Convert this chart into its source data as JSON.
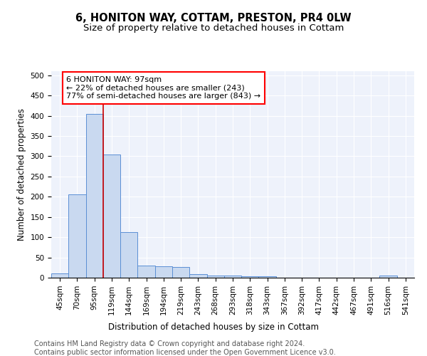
{
  "title1": "6, HONITON WAY, COTTAM, PRESTON, PR4 0LW",
  "title2": "Size of property relative to detached houses in Cottam",
  "xlabel": "Distribution of detached houses by size in Cottam",
  "ylabel": "Number of detached properties",
  "categories": [
    "45sqm",
    "70sqm",
    "95sqm",
    "119sqm",
    "144sqm",
    "169sqm",
    "194sqm",
    "219sqm",
    "243sqm",
    "268sqm",
    "293sqm",
    "318sqm",
    "343sqm",
    "367sqm",
    "392sqm",
    "417sqm",
    "442sqm",
    "467sqm",
    "491sqm",
    "516sqm",
    "541sqm"
  ],
  "values": [
    10,
    205,
    405,
    305,
    113,
    30,
    28,
    26,
    8,
    6,
    5,
    4,
    4,
    0,
    0,
    0,
    0,
    0,
    0,
    5,
    0
  ],
  "bar_color": "#c9d9f0",
  "bar_edge_color": "#5b8fd4",
  "bar_linewidth": 0.7,
  "vline_x": 2.5,
  "vline_color": "#cc0000",
  "annotation_line1": "6 HONITON WAY: 97sqm",
  "annotation_line2": "← 22% of detached houses are smaller (243)",
  "annotation_line3": "77% of semi-detached houses are larger (843) →",
  "ylim": [
    0,
    510
  ],
  "yticks": [
    0,
    50,
    100,
    150,
    200,
    250,
    300,
    350,
    400,
    450,
    500
  ],
  "bg_color": "#eef2fb",
  "footer1": "Contains HM Land Registry data © Crown copyright and database right 2024.",
  "footer2": "Contains public sector information licensed under the Open Government Licence v3.0.",
  "title1_fontsize": 10.5,
  "title2_fontsize": 9.5,
  "axis_label_fontsize": 8.5,
  "tick_fontsize": 7.5,
  "annotation_fontsize": 8,
  "footer_fontsize": 7
}
